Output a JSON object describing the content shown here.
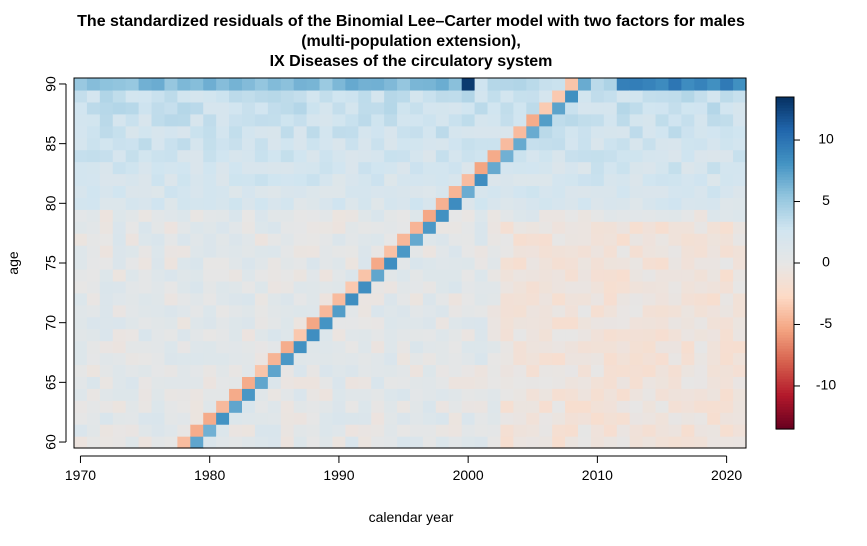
{
  "chart_data": {
    "type": "heatmap",
    "title": [
      "The standardized residuals of the Binomial Lee–Carter model with two factors for males",
      "(multi-population extension),",
      "IX Diseases of the circulatory system"
    ],
    "xlabel": "calendar year",
    "ylabel": "age",
    "x_range": [
      1970,
      2021
    ],
    "y_range": [
      60,
      90
    ],
    "x_ticks": [
      1970,
      1980,
      1990,
      2000,
      2010,
      2020
    ],
    "y_ticks": [
      60,
      65,
      70,
      75,
      80,
      85,
      90
    ],
    "color_scale": {
      "min": -13.5,
      "max": 13.5,
      "ticks": [
        10,
        5,
        0,
        -5,
        -10
      ],
      "palette": [
        "#67001f",
        "#b2182b",
        "#d6604d",
        "#f4a582",
        "#fddbc7",
        "#e6e6e6",
        "#d1e5f0",
        "#92c5de",
        "#4393c3",
        "#2166ac",
        "#053061"
      ]
    },
    "features": {
      "background_level": 0.5,
      "old_age_band": {
        "ages": [
          80,
          90
        ],
        "level": 3.0
      },
      "top_row_age_90": [
        {
          "years": [
            1970,
            1999
          ],
          "level": 6.0
        },
        {
          "year": 2000,
          "level": 13.0
        },
        {
          "years": [
            2012,
            2021
          ],
          "level": 9.0
        }
      ],
      "positive_cohort_diagonal": {
        "birth_year": 1919,
        "level": 7.5
      },
      "negative_cohort_diagonal": {
        "birth_year": 1918,
        "level": -4.5
      },
      "mild_negative_region": {
        "years": [
          2003,
          2021
        ],
        "ages": [
          60,
          78
        ],
        "level": -1.0
      }
    },
    "grid": false,
    "legend": "colorbar-right"
  }
}
